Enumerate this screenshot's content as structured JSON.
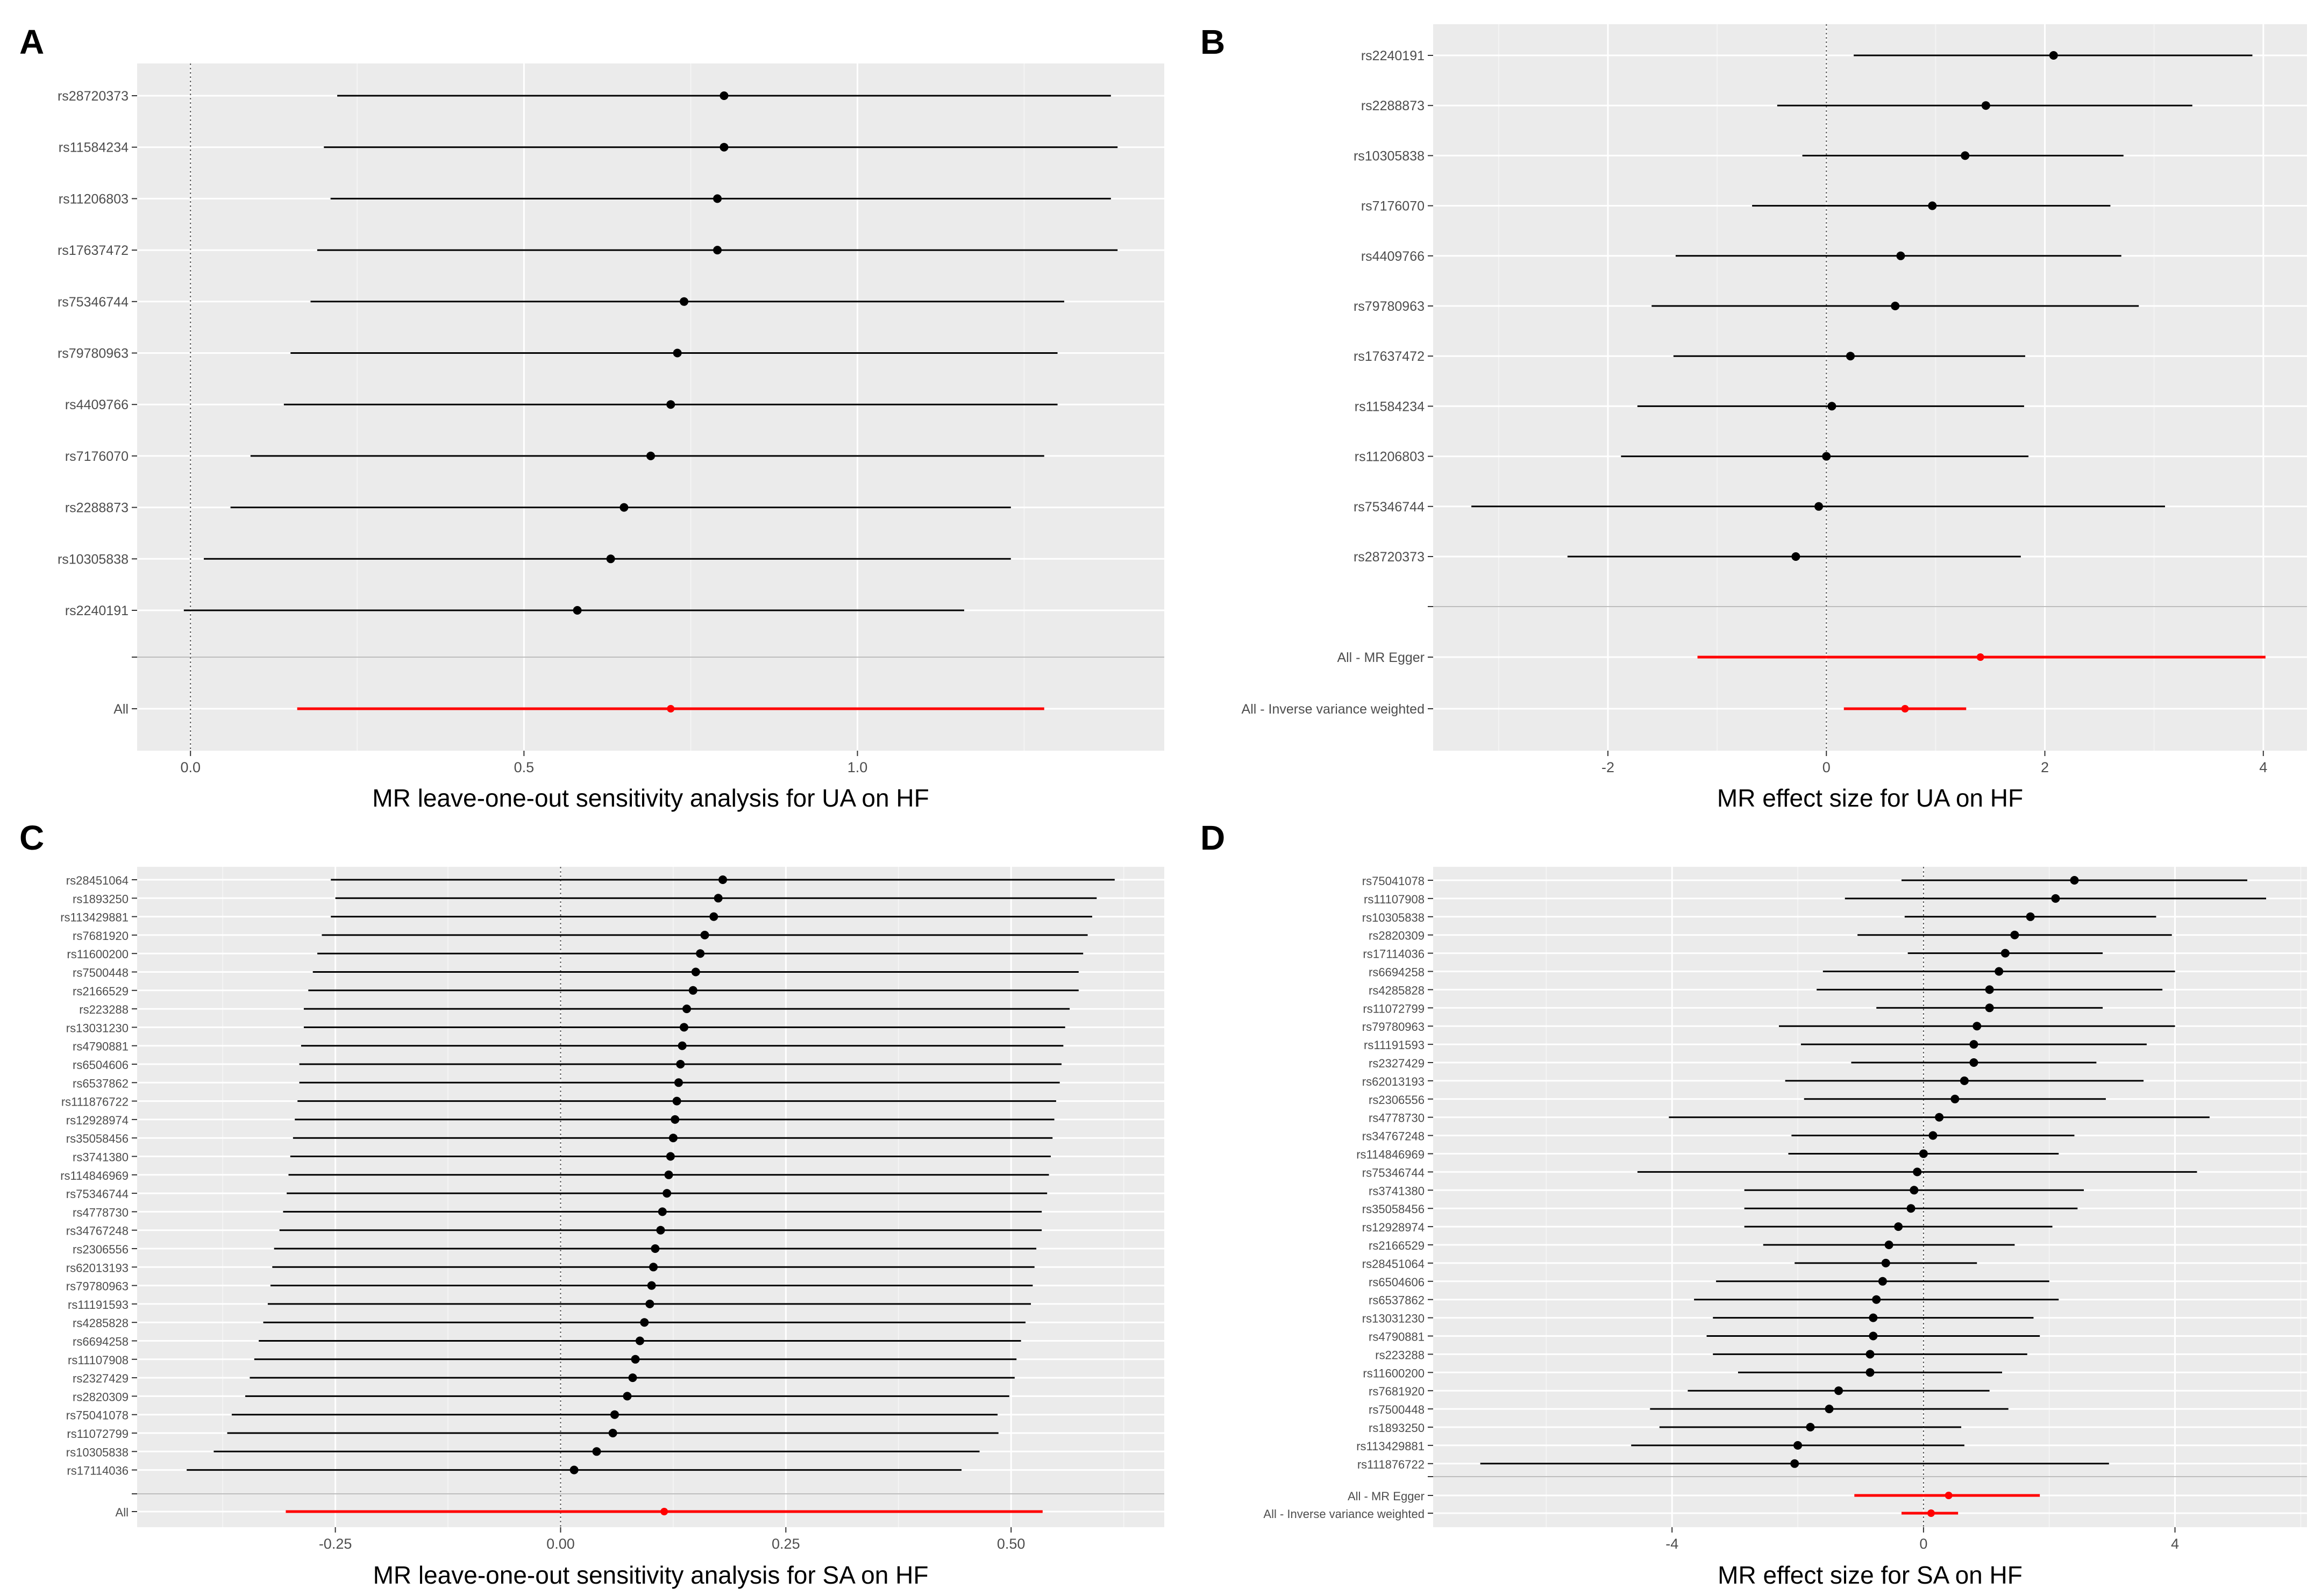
{
  "colors": {
    "panel_bg": "#ebebeb",
    "grid_major": "#ffffff",
    "grid_minor": "#f4f4f4",
    "point": "#000000",
    "summary": "#ff0000",
    "separator": "#bdbdbd",
    "zero_line": "#555555",
    "tick_text": "#4d4d4d"
  },
  "chart_data": [
    {
      "panel": "A",
      "type": "forest",
      "xlabel": "MR leave-one-out sensitivity analysis for UA on HF",
      "xlim": [
        -0.08,
        1.46
      ],
      "xticks": [
        0.0,
        0.5,
        1.0
      ],
      "xtick_labels": [
        "0.0",
        "0.5",
        "1.0"
      ],
      "ref_x": 0,
      "rows": [
        {
          "label": "rs28720373",
          "b": 0.8,
          "lo": 0.22,
          "hi": 1.38
        },
        {
          "label": "rs11584234",
          "b": 0.8,
          "lo": 0.2,
          "hi": 1.39
        },
        {
          "label": "rs11206803",
          "b": 0.79,
          "lo": 0.21,
          "hi": 1.38
        },
        {
          "label": "rs17637472",
          "b": 0.79,
          "lo": 0.19,
          "hi": 1.39
        },
        {
          "label": "rs75346744",
          "b": 0.74,
          "lo": 0.18,
          "hi": 1.31
        },
        {
          "label": "rs79780963",
          "b": 0.73,
          "lo": 0.15,
          "hi": 1.3
        },
        {
          "label": "rs4409766",
          "b": 0.72,
          "lo": 0.14,
          "hi": 1.3
        },
        {
          "label": "rs7176070",
          "b": 0.69,
          "lo": 0.09,
          "hi": 1.28
        },
        {
          "label": "rs2288873",
          "b": 0.65,
          "lo": 0.06,
          "hi": 1.23
        },
        {
          "label": "rs10305838",
          "b": 0.63,
          "lo": 0.02,
          "hi": 1.23
        },
        {
          "label": "rs2240191",
          "b": 0.58,
          "lo": -0.01,
          "hi": 1.16
        }
      ],
      "summary": [
        {
          "label": "All",
          "b": 0.72,
          "lo": 0.16,
          "hi": 1.28
        }
      ]
    },
    {
      "panel": "B",
      "type": "forest",
      "xlabel": "MR effect size for UA on HF",
      "xlim": [
        -3.6,
        4.4
      ],
      "xticks": [
        -2,
        0,
        2,
        4
      ],
      "xtick_labels": [
        "-2",
        "0",
        "2",
        "4"
      ],
      "ref_x": 0,
      "rows": [
        {
          "label": "rs2240191",
          "b": 2.08,
          "lo": 0.25,
          "hi": 3.9
        },
        {
          "label": "rs2288873",
          "b": 1.46,
          "lo": -0.45,
          "hi": 3.35
        },
        {
          "label": "rs10305838",
          "b": 1.27,
          "lo": -0.22,
          "hi": 2.72
        },
        {
          "label": "rs7176070",
          "b": 0.97,
          "lo": -0.68,
          "hi": 2.6
        },
        {
          "label": "rs4409766",
          "b": 0.68,
          "lo": -1.38,
          "hi": 2.7
        },
        {
          "label": "rs79780963",
          "b": 0.63,
          "lo": -1.6,
          "hi": 2.86
        },
        {
          "label": "rs17637472",
          "b": 0.22,
          "lo": -1.4,
          "hi": 1.82
        },
        {
          "label": "rs11584234",
          "b": 0.05,
          "lo": -1.73,
          "hi": 1.81
        },
        {
          "label": "rs11206803",
          "b": 0.0,
          "lo": -1.88,
          "hi": 1.85
        },
        {
          "label": "rs75346744",
          "b": -0.07,
          "lo": -3.25,
          "hi": 3.1
        },
        {
          "label": "rs28720373",
          "b": -0.28,
          "lo": -2.37,
          "hi": 1.78
        }
      ],
      "summary": [
        {
          "label": "All - MR Egger",
          "b": 1.41,
          "lo": -1.18,
          "hi": 4.02
        },
        {
          "label": "All - Inverse variance weighted",
          "b": 0.72,
          "lo": 0.16,
          "hi": 1.28
        }
      ]
    },
    {
      "panel": "C",
      "type": "forest",
      "xlabel": "MR leave-one-out sensitivity analysis for SA on HF",
      "xlim": [
        -0.47,
        0.67
      ],
      "xticks": [
        -0.25,
        0.0,
        0.25,
        0.5
      ],
      "xtick_labels": [
        "-0.25",
        "0.00",
        "0.25",
        "0.50"
      ],
      "ref_x": 0,
      "rows": [
        {
          "label": "rs28451064",
          "b": 0.18,
          "lo": -0.255,
          "hi": 0.615
        },
        {
          "label": "rs1893250",
          "b": 0.175,
          "lo": -0.25,
          "hi": 0.595
        },
        {
          "label": "rs113429881",
          "b": 0.17,
          "lo": -0.255,
          "hi": 0.59
        },
        {
          "label": "rs7681920",
          "b": 0.16,
          "lo": -0.265,
          "hi": 0.585
        },
        {
          "label": "rs11600200",
          "b": 0.155,
          "lo": -0.27,
          "hi": 0.58
        },
        {
          "label": "rs7500448",
          "b": 0.15,
          "lo": -0.275,
          "hi": 0.575
        },
        {
          "label": "rs2166529",
          "b": 0.147,
          "lo": -0.28,
          "hi": 0.575
        },
        {
          "label": "rs223288",
          "b": 0.14,
          "lo": -0.285,
          "hi": 0.565
        },
        {
          "label": "rs13031230",
          "b": 0.137,
          "lo": -0.285,
          "hi": 0.56
        },
        {
          "label": "rs4790881",
          "b": 0.135,
          "lo": -0.288,
          "hi": 0.558
        },
        {
          "label": "rs6504606",
          "b": 0.133,
          "lo": -0.29,
          "hi": 0.556
        },
        {
          "label": "rs6537862",
          "b": 0.131,
          "lo": -0.29,
          "hi": 0.554
        },
        {
          "label": "rs111876722",
          "b": 0.129,
          "lo": -0.292,
          "hi": 0.55
        },
        {
          "label": "rs12928974",
          "b": 0.127,
          "lo": -0.295,
          "hi": 0.548
        },
        {
          "label": "rs35058456",
          "b": 0.125,
          "lo": -0.297,
          "hi": 0.546
        },
        {
          "label": "rs3741380",
          "b": 0.122,
          "lo": -0.3,
          "hi": 0.544
        },
        {
          "label": "rs114846969",
          "b": 0.12,
          "lo": -0.302,
          "hi": 0.542
        },
        {
          "label": "rs75346744",
          "b": 0.118,
          "lo": -0.304,
          "hi": 0.54
        },
        {
          "label": "rs4778730",
          "b": 0.113,
          "lo": -0.308,
          "hi": 0.534
        },
        {
          "label": "rs34767248",
          "b": 0.111,
          "lo": -0.312,
          "hi": 0.534
        },
        {
          "label": "rs2306556",
          "b": 0.105,
          "lo": -0.318,
          "hi": 0.528
        },
        {
          "label": "rs62013193",
          "b": 0.103,
          "lo": -0.32,
          "hi": 0.526
        },
        {
          "label": "rs79780963",
          "b": 0.101,
          "lo": -0.322,
          "hi": 0.524
        },
        {
          "label": "rs11191593",
          "b": 0.099,
          "lo": -0.325,
          "hi": 0.522
        },
        {
          "label": "rs4285828",
          "b": 0.093,
          "lo": -0.33,
          "hi": 0.516
        },
        {
          "label": "rs6694258",
          "b": 0.088,
          "lo": -0.335,
          "hi": 0.511
        },
        {
          "label": "rs11107908",
          "b": 0.083,
          "lo": -0.34,
          "hi": 0.506
        },
        {
          "label": "rs2327429",
          "b": 0.08,
          "lo": -0.345,
          "hi": 0.504
        },
        {
          "label": "rs2820309",
          "b": 0.074,
          "lo": -0.35,
          "hi": 0.498
        },
        {
          "label": "rs75041078",
          "b": 0.06,
          "lo": -0.365,
          "hi": 0.485
        },
        {
          "label": "rs11072799",
          "b": 0.058,
          "lo": -0.37,
          "hi": 0.486
        },
        {
          "label": "rs10305838",
          "b": 0.04,
          "lo": -0.385,
          "hi": 0.465
        },
        {
          "label": "rs17114036",
          "b": 0.015,
          "lo": -0.415,
          "hi": 0.445
        }
      ],
      "summary": [
        {
          "label": "All",
          "b": 0.115,
          "lo": -0.305,
          "hi": 0.535
        }
      ]
    },
    {
      "panel": "D",
      "type": "forest",
      "xlabel": "MR effect size for SA on HF",
      "xlim": [
        -7.8,
        6.1
      ],
      "xticks": [
        -4,
        0,
        4
      ],
      "xtick_labels": [
        "-4",
        "0",
        "4"
      ],
      "ref_x": 0,
      "rows": [
        {
          "label": "rs75041078",
          "b": 2.4,
          "lo": -0.35,
          "hi": 5.15
        },
        {
          "label": "rs11107908",
          "b": 2.1,
          "lo": -1.25,
          "hi": 5.45
        },
        {
          "label": "rs10305838",
          "b": 1.7,
          "lo": -0.3,
          "hi": 3.7
        },
        {
          "label": "rs2820309",
          "b": 1.45,
          "lo": -1.05,
          "hi": 3.95
        },
        {
          "label": "rs17114036",
          "b": 1.3,
          "lo": -0.25,
          "hi": 2.85
        },
        {
          "label": "rs6694258",
          "b": 1.2,
          "lo": -1.6,
          "hi": 4.0
        },
        {
          "label": "rs4285828",
          "b": 1.05,
          "lo": -1.7,
          "hi": 3.8
        },
        {
          "label": "rs11072799",
          "b": 1.05,
          "lo": -0.75,
          "hi": 2.85
        },
        {
          "label": "rs79780963",
          "b": 0.85,
          "lo": -2.3,
          "hi": 4.0
        },
        {
          "label": "rs11191593",
          "b": 0.8,
          "lo": -1.95,
          "hi": 3.55
        },
        {
          "label": "rs2327429",
          "b": 0.8,
          "lo": -1.15,
          "hi": 2.75
        },
        {
          "label": "rs62013193",
          "b": 0.65,
          "lo": -2.2,
          "hi": 3.5
        },
        {
          "label": "rs2306556",
          "b": 0.5,
          "lo": -1.9,
          "hi": 2.9
        },
        {
          "label": "rs4778730",
          "b": 0.25,
          "lo": -4.05,
          "hi": 4.55
        },
        {
          "label": "rs34767248",
          "b": 0.15,
          "lo": -2.1,
          "hi": 2.4
        },
        {
          "label": "rs114846969",
          "b": 0.0,
          "lo": -2.15,
          "hi": 2.15
        },
        {
          "label": "rs75346744",
          "b": -0.1,
          "lo": -4.55,
          "hi": 4.35
        },
        {
          "label": "rs3741380",
          "b": -0.15,
          "lo": -2.85,
          "hi": 2.55
        },
        {
          "label": "rs35058456",
          "b": -0.2,
          "lo": -2.85,
          "hi": 2.45
        },
        {
          "label": "rs12928974",
          "b": -0.4,
          "lo": -2.85,
          "hi": 2.05
        },
        {
          "label": "rs2166529",
          "b": -0.55,
          "lo": -2.55,
          "hi": 1.45
        },
        {
          "label": "rs28451064",
          "b": -0.6,
          "lo": -2.05,
          "hi": 0.85
        },
        {
          "label": "rs6504606",
          "b": -0.65,
          "lo": -3.3,
          "hi": 2.0
        },
        {
          "label": "rs6537862",
          "b": -0.75,
          "lo": -3.65,
          "hi": 2.15
        },
        {
          "label": "rs13031230",
          "b": -0.8,
          "lo": -3.35,
          "hi": 1.75
        },
        {
          "label": "rs4790881",
          "b": -0.8,
          "lo": -3.45,
          "hi": 1.85
        },
        {
          "label": "rs223288",
          "b": -0.85,
          "lo": -3.35,
          "hi": 1.65
        },
        {
          "label": "rs11600200",
          "b": -0.85,
          "lo": -2.95,
          "hi": 1.25
        },
        {
          "label": "rs7681920",
          "b": -1.35,
          "lo": -3.75,
          "hi": 1.05
        },
        {
          "label": "rs7500448",
          "b": -1.5,
          "lo": -4.35,
          "hi": 1.35
        },
        {
          "label": "rs1893250",
          "b": -1.8,
          "lo": -4.2,
          "hi": 0.6
        },
        {
          "label": "rs113429881",
          "b": -2.0,
          "lo": -4.65,
          "hi": 0.65
        },
        {
          "label": "rs111876722",
          "b": -2.05,
          "lo": -7.05,
          "hi": 2.95
        }
      ],
      "summary": [
        {
          "label": "All - MR Egger",
          "b": 0.4,
          "lo": -1.1,
          "hi": 1.85
        },
        {
          "label": "All - Inverse variance weighted",
          "b": 0.12,
          "lo": -0.35,
          "hi": 0.55
        }
      ]
    }
  ]
}
